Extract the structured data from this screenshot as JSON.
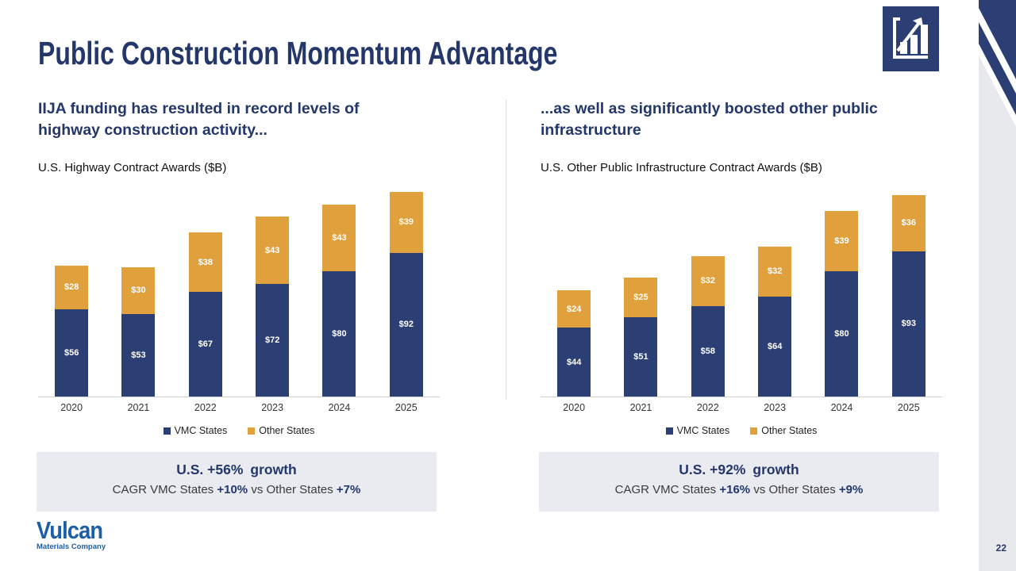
{
  "slide": {
    "title": "Public Construction Momentum Advantage",
    "page_number": "22"
  },
  "logo": {
    "name": "Vulcan",
    "tagline": "Materials Company"
  },
  "colors": {
    "navy_text": "#24376B",
    "bar_navy": "#2B3F74",
    "bar_orange": "#E0A03C",
    "growth_box_bg": "#E9EBF1",
    "side_band_gray": "#E8E9ED",
    "logo_blue": "#1C5FA8"
  },
  "panels": [
    {
      "heading": "IIJA funding has resulted in record levels of highway construction activity...",
      "chart_title": "U.S. Highway Contract Awards ($B)",
      "growth_headline_lead": "U.S. +56%",
      "growth_headline_tail": "growth",
      "growth_detail": [
        {
          "text": "CAGR VMC States ",
          "accent": false
        },
        {
          "text": "+10%",
          "accent": true
        },
        {
          "text": " vs Other States ",
          "accent": false
        },
        {
          "text": "+7%",
          "accent": true
        }
      ]
    },
    {
      "heading": "...as well as significantly boosted other public infrastructure",
      "chart_title": "U.S. Other Public Infrastructure Contract Awards ($B)",
      "growth_headline_lead": "U.S. +92%",
      "growth_headline_tail": "growth",
      "growth_detail": [
        {
          "text": "CAGR VMC States ",
          "accent": false
        },
        {
          "text": "+16%",
          "accent": true
        },
        {
          "text": " vs Other States ",
          "accent": false
        },
        {
          "text": "+9%",
          "accent": true
        }
      ]
    }
  ],
  "chart_data": [
    {
      "type": "bar",
      "stacked": true,
      "title": "U.S. Highway Contract Awards ($B)",
      "categories": [
        "2020",
        "2021",
        "2022",
        "2023",
        "2024",
        "2025"
      ],
      "series": [
        {
          "name": "VMC States",
          "color": "#2B3F74",
          "values": [
            56,
            53,
            67,
            72,
            80,
            92
          ],
          "labels": [
            "$56",
            "$53",
            "$67",
            "$72",
            "$80",
            "$92"
          ]
        },
        {
          "name": "Other States",
          "color": "#E0A03C",
          "values": [
            28,
            30,
            38,
            43,
            43,
            39
          ],
          "labels": [
            "$28",
            "$30",
            "$38",
            "$43",
            "$43",
            "$39"
          ]
        }
      ],
      "totals": [
        84,
        83,
        105,
        115,
        123,
        131
      ],
      "ylim": [
        0,
        135
      ],
      "grid": false,
      "legend_position": "bottom"
    },
    {
      "type": "bar",
      "stacked": true,
      "title": "U.S. Other Public Infrastructure Contract Awards ($B)",
      "categories": [
        "2020",
        "2021",
        "2022",
        "2023",
        "2024",
        "2025"
      ],
      "series": [
        {
          "name": "VMC States",
          "color": "#2B3F74",
          "values": [
            44,
            51,
            58,
            64,
            80,
            93
          ],
          "labels": [
            "$44",
            "$51",
            "$58",
            "$64",
            "$80",
            "$93"
          ]
        },
        {
          "name": "Other States",
          "color": "#E0A03C",
          "values": [
            24,
            25,
            32,
            32,
            39,
            36
          ],
          "labels": [
            "$24",
            "$25",
            "$32",
            "$32",
            "$39",
            "$36"
          ]
        }
      ],
      "totals": [
        68,
        76,
        90,
        96,
        119,
        129
      ],
      "ylim": [
        0,
        135
      ],
      "grid": false,
      "legend_position": "bottom"
    }
  ]
}
